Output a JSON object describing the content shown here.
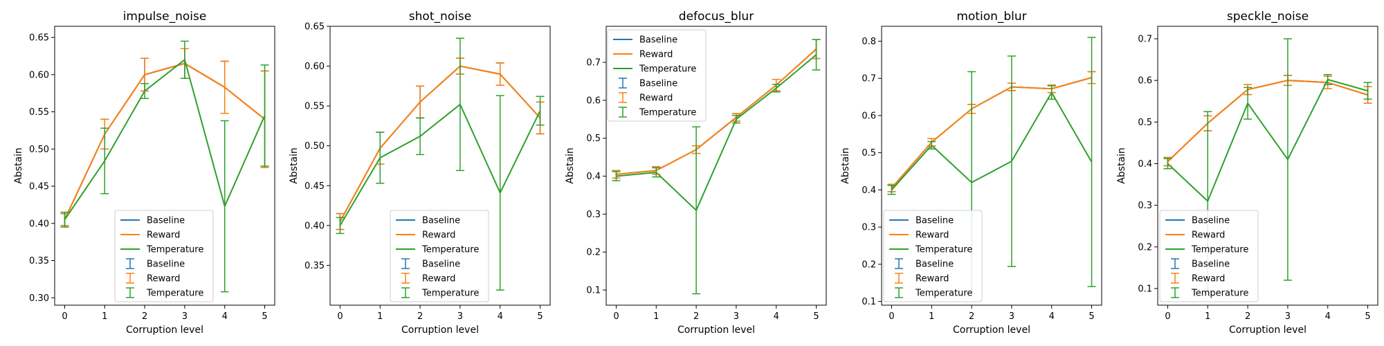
{
  "colors": {
    "Baseline": "#1f77b4",
    "Reward": "#ff7f0e",
    "Temperature": "#2ca02c"
  },
  "chart_data": [
    {
      "type": "line",
      "title": "impulse_noise",
      "xlabel": "Corruption level",
      "ylabel": "Abstain",
      "x": [
        0,
        1,
        2,
        3,
        4,
        5
      ],
      "xticks": [
        "0",
        "1",
        "2",
        "3",
        "4",
        "5"
      ],
      "ylim": [
        0.29,
        0.665
      ],
      "yticks": [
        0.3,
        0.35,
        0.4,
        0.45,
        0.5,
        0.55,
        0.6,
        0.65
      ],
      "ytick_labels": [
        "0.30",
        "0.35",
        "0.40",
        "0.45",
        "0.50",
        "0.55",
        "0.60",
        "0.65"
      ],
      "legend": {
        "location": "lower center",
        "entries": [
          "Baseline",
          "Reward",
          "Temperature",
          "Baseline",
          "Reward",
          "Temperature"
        ]
      },
      "series": [
        {
          "name": "Baseline",
          "values": [
            0.405,
            0.52,
            0.6,
            0.615,
            0.583,
            0.54
          ],
          "err": [
            0.008,
            0.02,
            0.022,
            0.02,
            0.035,
            0.065
          ]
        },
        {
          "name": "Reward",
          "values": [
            0.405,
            0.52,
            0.6,
            0.615,
            0.583,
            0.54
          ],
          "err": [
            0.008,
            0.02,
            0.022,
            0.02,
            0.035,
            0.065
          ]
        },
        {
          "name": "Temperature",
          "values": [
            0.405,
            0.484,
            0.578,
            0.62,
            0.423,
            0.545
          ],
          "err": [
            0.01,
            0.044,
            0.01,
            0.025,
            0.115,
            0.068
          ]
        }
      ]
    },
    {
      "type": "line",
      "title": "shot_noise",
      "xlabel": "Corruption level",
      "ylabel": "Abstain",
      "x": [
        0,
        1,
        2,
        3,
        4,
        5
      ],
      "xticks": [
        "0",
        "1",
        "2",
        "3",
        "4",
        "5"
      ],
      "ylim": [
        0.3,
        0.65
      ],
      "yticks": [
        0.35,
        0.4,
        0.45,
        0.5,
        0.55,
        0.6,
        0.65
      ],
      "ytick_labels": [
        "0.35",
        "0.40",
        "0.45",
        "0.50",
        "0.55",
        "0.60",
        "0.65"
      ],
      "legend": {
        "location": "lower center",
        "entries": [
          "Baseline",
          "Reward",
          "Temperature",
          "Baseline",
          "Reward",
          "Temperature"
        ]
      },
      "series": [
        {
          "name": "Baseline",
          "values": [
            0.405,
            0.497,
            0.555,
            0.6,
            0.59,
            0.535
          ],
          "err": [
            0.01,
            0.02,
            0.02,
            0.01,
            0.014,
            0.02
          ]
        },
        {
          "name": "Reward",
          "values": [
            0.405,
            0.497,
            0.555,
            0.6,
            0.59,
            0.535
          ],
          "err": [
            0.01,
            0.02,
            0.02,
            0.01,
            0.014,
            0.02
          ]
        },
        {
          "name": "Temperature",
          "values": [
            0.4,
            0.485,
            0.512,
            0.552,
            0.441,
            0.544
          ],
          "err": [
            0.01,
            0.032,
            0.023,
            0.083,
            0.122,
            0.018
          ]
        }
      ]
    },
    {
      "type": "line",
      "title": "defocus_blur",
      "xlabel": "Corruption level",
      "ylabel": "Abstain",
      "x": [
        0,
        1,
        2,
        3,
        4,
        5
      ],
      "xticks": [
        "0",
        "1",
        "2",
        "3",
        "4",
        "5"
      ],
      "ylim": [
        0.06,
        0.795
      ],
      "yticks": [
        0.1,
        0.2,
        0.3,
        0.4,
        0.5,
        0.6,
        0.7
      ],
      "ytick_labels": [
        "0.1",
        "0.2",
        "0.3",
        "0.4",
        "0.5",
        "0.6",
        "0.7"
      ],
      "legend": {
        "location": "upper left",
        "entries": [
          "Baseline",
          "Reward",
          "Temperature",
          "Baseline",
          "Reward",
          "Temperature"
        ]
      },
      "series": [
        {
          "name": "Baseline",
          "values": [
            0.405,
            0.415,
            0.47,
            0.555,
            0.64,
            0.735
          ],
          "err": [
            0.01,
            0.01,
            0.01,
            0.01,
            0.015,
            0.025
          ]
        },
        {
          "name": "Reward",
          "values": [
            0.405,
            0.415,
            0.47,
            0.555,
            0.64,
            0.735
          ],
          "err": [
            0.01,
            0.01,
            0.01,
            0.01,
            0.015,
            0.025
          ]
        },
        {
          "name": "Temperature",
          "values": [
            0.4,
            0.41,
            0.31,
            0.55,
            0.632,
            0.72
          ],
          "err": [
            0.012,
            0.012,
            0.22,
            0.01,
            0.01,
            0.04
          ]
        }
      ]
    },
    {
      "type": "line",
      "title": "motion_blur",
      "xlabel": "Corruption level",
      "ylabel": "Abstain",
      "x": [
        0,
        1,
        2,
        3,
        4,
        5
      ],
      "xticks": [
        "0",
        "1",
        "2",
        "3",
        "4",
        "5"
      ],
      "ylim": [
        0.09,
        0.84
      ],
      "yticks": [
        0.1,
        0.2,
        0.3,
        0.4,
        0.5,
        0.6,
        0.7,
        0.8
      ],
      "ytick_labels": [
        "0.1",
        "0.2",
        "0.3",
        "0.4",
        "0.5",
        "0.6",
        "0.7",
        "0.8"
      ],
      "legend": {
        "location": "lower left",
        "entries": [
          "Baseline",
          "Reward",
          "Temperature",
          "Baseline",
          "Reward",
          "Temperature"
        ]
      },
      "series": [
        {
          "name": "Baseline",
          "values": [
            0.405,
            0.528,
            0.618,
            0.677,
            0.672,
            0.702
          ],
          "err": [
            0.01,
            0.01,
            0.012,
            0.01,
            0.01,
            0.016
          ]
        },
        {
          "name": "Reward",
          "values": [
            0.405,
            0.528,
            0.618,
            0.677,
            0.672,
            0.702
          ],
          "err": [
            0.01,
            0.01,
            0.012,
            0.01,
            0.01,
            0.016
          ]
        },
        {
          "name": "Temperature",
          "values": [
            0.4,
            0.52,
            0.42,
            0.477,
            0.662,
            0.475
          ],
          "err": [
            0.012,
            0.01,
            0.298,
            0.283,
            0.018,
            0.335
          ]
        }
      ]
    },
    {
      "type": "line",
      "title": "speckle_noise",
      "xlabel": "Corruption level",
      "ylabel": "Abstain",
      "x": [
        0,
        1,
        2,
        3,
        4,
        5
      ],
      "xticks": [
        "0",
        "1",
        "2",
        "3",
        "4",
        "5"
      ],
      "ylim": [
        0.06,
        0.73
      ],
      "yticks": [
        0.1,
        0.2,
        0.3,
        0.4,
        0.5,
        0.6,
        0.7
      ],
      "ytick_labels": [
        "0.1",
        "0.2",
        "0.3",
        "0.4",
        "0.5",
        "0.6",
        "0.7"
      ],
      "legend": {
        "location": "lower left",
        "entries": [
          "Baseline",
          "Reward",
          "Temperature",
          "Baseline",
          "Reward",
          "Temperature"
        ]
      },
      "series": [
        {
          "name": "Baseline",
          "values": [
            0.405,
            0.497,
            0.578,
            0.6,
            0.595,
            0.565
          ],
          "err": [
            0.01,
            0.018,
            0.012,
            0.012,
            0.015,
            0.02
          ]
        },
        {
          "name": "Reward",
          "values": [
            0.405,
            0.497,
            0.578,
            0.6,
            0.595,
            0.565
          ],
          "err": [
            0.01,
            0.018,
            0.012,
            0.012,
            0.015,
            0.02
          ]
        },
        {
          "name": "Temperature",
          "values": [
            0.4,
            0.31,
            0.545,
            0.41,
            0.602,
            0.575
          ],
          "err": [
            0.012,
            0.215,
            0.038,
            0.29,
            0.012,
            0.02
          ]
        }
      ]
    }
  ]
}
